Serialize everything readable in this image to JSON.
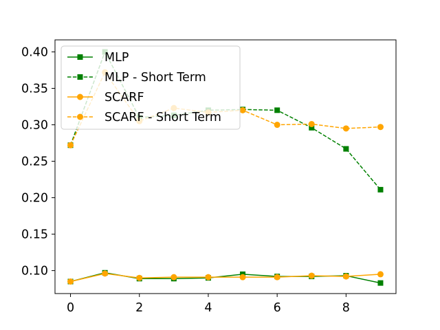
{
  "chart_data": {
    "type": "line",
    "title": "",
    "xlabel": "",
    "ylabel": "",
    "x": [
      0,
      1,
      2,
      3,
      4,
      5,
      6,
      7,
      8,
      9
    ],
    "xlim": [
      -0.45,
      9.45
    ],
    "ylim": [
      0.0685,
      0.4165
    ],
    "xticks": [
      0,
      2,
      4,
      6,
      8
    ],
    "xtick_labels": [
      "0",
      "2",
      "4",
      "6",
      "8"
    ],
    "yticks": [
      0.1,
      0.15,
      0.2,
      0.25,
      0.3,
      0.35,
      0.4
    ],
    "ytick_labels": [
      "0.10",
      "0.15",
      "0.20",
      "0.25",
      "0.30",
      "0.35",
      "0.40"
    ],
    "grid": false,
    "legend_position": "top-left",
    "series": [
      {
        "name": "MLP",
        "color": "#008000",
        "linestyle": "solid",
        "marker": "square",
        "values": [
          0.085,
          0.097,
          0.089,
          0.089,
          0.09,
          0.095,
          0.092,
          0.092,
          0.093,
          0.083
        ]
      },
      {
        "name": "MLP - Short Term",
        "color": "#008000",
        "linestyle": "dashed",
        "marker": "square",
        "values": [
          0.272,
          0.4,
          0.31,
          0.313,
          0.32,
          0.321,
          0.32,
          0.296,
          0.267,
          0.211
        ]
      },
      {
        "name": "SCARF",
        "color": "#ffa500",
        "linestyle": "solid",
        "marker": "circle",
        "values": [
          0.085,
          0.096,
          0.09,
          0.091,
          0.091,
          0.091,
          0.091,
          0.093,
          0.092,
          0.095
        ]
      },
      {
        "name": "SCARF - Short Term",
        "color": "#ffa500",
        "linestyle": "dashed",
        "marker": "circle",
        "values": [
          0.272,
          0.372,
          0.305,
          0.323,
          0.317,
          0.32,
          0.3,
          0.301,
          0.295,
          0.297
        ]
      }
    ]
  }
}
